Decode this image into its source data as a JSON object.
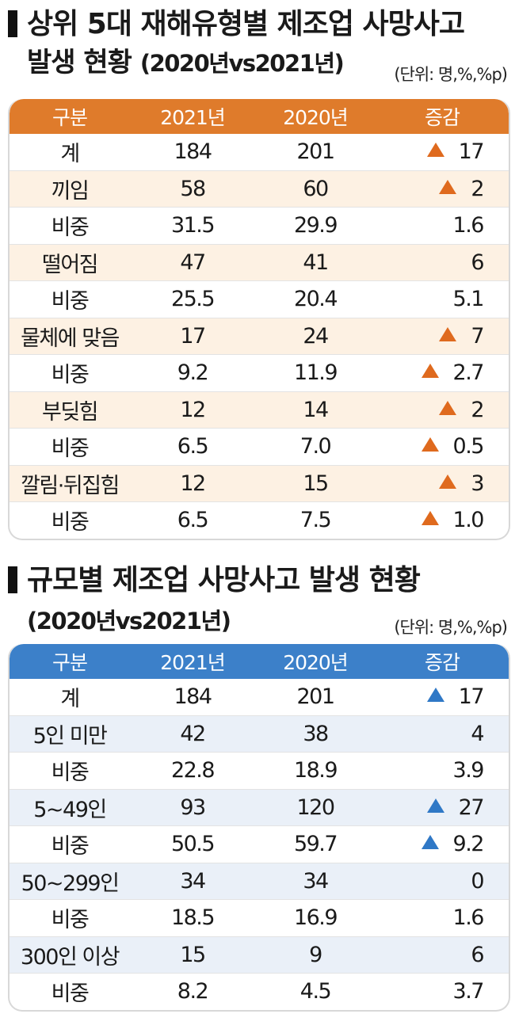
{
  "section1": {
    "title": "상위 5대 재해유형별 제조업 사망사고",
    "subtitle_main": "발생 현황",
    "subtitle_period": "(2020년vs2021년)",
    "unit": "(단위: 명,%,%p)",
    "headers": [
      "구분",
      "2021년",
      "2020년",
      "증감"
    ],
    "rows": [
      {
        "label": "계",
        "y2021": "184",
        "y2020": "201",
        "change": "17",
        "decrease": true
      },
      {
        "label": "끼임",
        "y2021": "58",
        "y2020": "60",
        "change": "2",
        "decrease": true
      },
      {
        "label": "비중",
        "y2021": "31.5",
        "y2020": "29.9",
        "change": "1.6",
        "decrease": false
      },
      {
        "label": "떨어짐",
        "y2021": "47",
        "y2020": "41",
        "change": "6",
        "decrease": false
      },
      {
        "label": "비중",
        "y2021": "25.5",
        "y2020": "20.4",
        "change": "5.1",
        "decrease": false
      },
      {
        "label": "물체에 맞음",
        "y2021": "17",
        "y2020": "24",
        "change": "7",
        "decrease": true
      },
      {
        "label": "비중",
        "y2021": "9.2",
        "y2020": "11.9",
        "change": "2.7",
        "decrease": true
      },
      {
        "label": "부딪힘",
        "y2021": "12",
        "y2020": "14",
        "change": "2",
        "decrease": true
      },
      {
        "label": "비중",
        "y2021": "6.5",
        "y2020": "7.0",
        "change": "0.5",
        "decrease": true
      },
      {
        "label": "깔림·뒤집힘",
        "y2021": "12",
        "y2020": "15",
        "change": "3",
        "decrease": true
      },
      {
        "label": "비중",
        "y2021": "6.5",
        "y2020": "7.5",
        "change": "1.0",
        "decrease": true
      }
    ]
  },
  "section2": {
    "title": "규모별 제조업 사망사고 발생 현황",
    "subtitle_period": "(2020년vs2021년)",
    "unit": "(단위: 명,%,%p)",
    "headers": [
      "구분",
      "2021년",
      "2020년",
      "증감"
    ],
    "rows": [
      {
        "label": "계",
        "y2021": "184",
        "y2020": "201",
        "change": "17",
        "decrease": true
      },
      {
        "label": "5인 미만",
        "y2021": "42",
        "y2020": "38",
        "change": "4",
        "decrease": false
      },
      {
        "label": "비중",
        "y2021": "22.8",
        "y2020": "18.9",
        "change": "3.9",
        "decrease": false
      },
      {
        "label": "5~49인",
        "y2021": "93",
        "y2020": "120",
        "change": "27",
        "decrease": true
      },
      {
        "label": "비중",
        "y2021": "50.5",
        "y2020": "59.7",
        "change": "9.2",
        "decrease": true
      },
      {
        "label": "50~299인",
        "y2021": "34",
        "y2020": "34",
        "change": "0",
        "decrease": false
      },
      {
        "label": "비중",
        "y2021": "18.5",
        "y2020": "16.9",
        "change": "1.6",
        "decrease": false
      },
      {
        "label": "300인 이상",
        "y2021": "15",
        "y2020": "9",
        "change": "6",
        "decrease": false
      },
      {
        "label": "비중",
        "y2021": "8.2",
        "y2020": "4.5",
        "change": "3.7",
        "decrease": false
      }
    ]
  },
  "colors": {
    "orange_header": "#df7b2b",
    "orange_tint": "#fdf1e3",
    "orange_triangle": "#df6a1e",
    "blue_header": "#3c80c9",
    "blue_tint": "#eaf0f8",
    "blue_triangle": "#2f78c6"
  },
  "icons": {
    "decrease_marker": "triangle-up-icon"
  }
}
